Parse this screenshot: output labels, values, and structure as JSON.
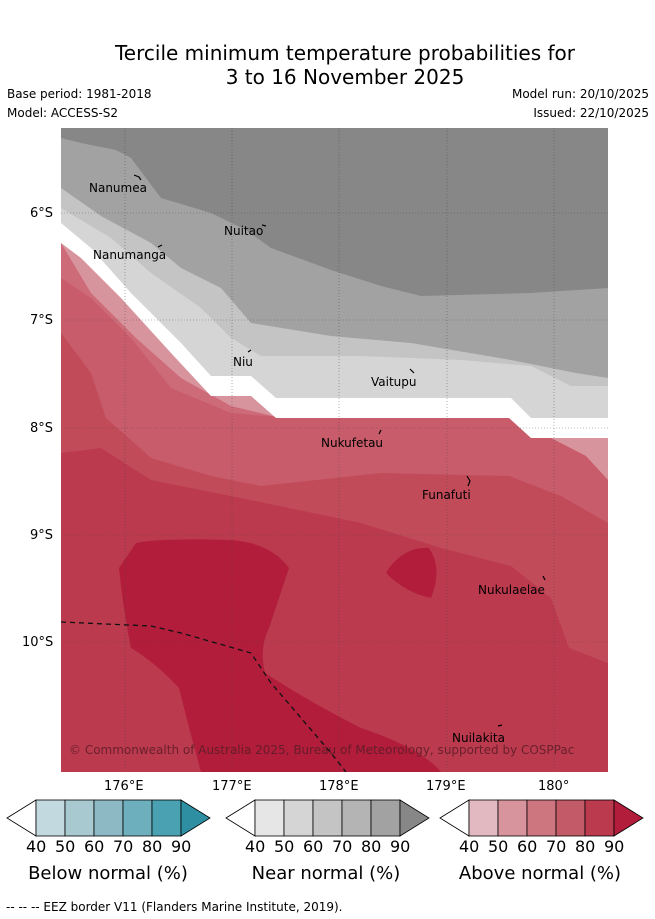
{
  "title": {
    "line1": "Tercile minimum temperature probabilities for",
    "line2": "3 to 16 November 2025"
  },
  "meta": {
    "base_period": "Base period: 1981-2018",
    "model": "Model: ACCESS-S2",
    "model_run": "Model run: 20/10/2025",
    "issued": "Issued: 22/10/2025"
  },
  "map": {
    "lat_labels": [
      "6°S",
      "7°S",
      "8°S",
      "9°S",
      "10°S"
    ],
    "lon_labels": [
      "176°E",
      "177°E",
      "178°E",
      "179°E",
      "180°"
    ],
    "places": [
      "Nanumea",
      "Nuitao",
      "Nanumanga",
      "Niu",
      "Vaitupu",
      "Nukufetau",
      "Funafuti",
      "Nukulaelae",
      "Nuilakita"
    ],
    "copyright": "© Commonwealth of Australia 2025, Bureau of Meteorology, supported by COSPPac"
  },
  "colorbars": [
    {
      "title": "Below normal (%)",
      "ticks": [
        "40",
        "50",
        "60",
        "70",
        "80",
        "90"
      ],
      "colors": [
        "#ffffff",
        "#c2d9df",
        "#a7c9cf",
        "#8cb9c3",
        "#6eafbd",
        "#4aa1b2",
        "#2d8fa1"
      ]
    },
    {
      "title": "Near normal (%)",
      "ticks": [
        "40",
        "50",
        "60",
        "70",
        "80",
        "90"
      ],
      "colors": [
        "#ffffff",
        "#e6e6e6",
        "#d5d5d5",
        "#c4c4c4",
        "#b4b4b4",
        "#a2a2a2",
        "#878787"
      ]
    },
    {
      "title": "Above normal (%)",
      "ticks": [
        "40",
        "50",
        "60",
        "70",
        "80",
        "90"
      ],
      "colors": [
        "#ffffff",
        "#e3b9c1",
        "#d8949d",
        "#ce7680",
        "#c35a67",
        "#bb3a4e",
        "#b11d3b"
      ]
    }
  ],
  "footnote": "-- -- -- EEZ border V11 (Flanders Marine Institute, 2019)."
}
